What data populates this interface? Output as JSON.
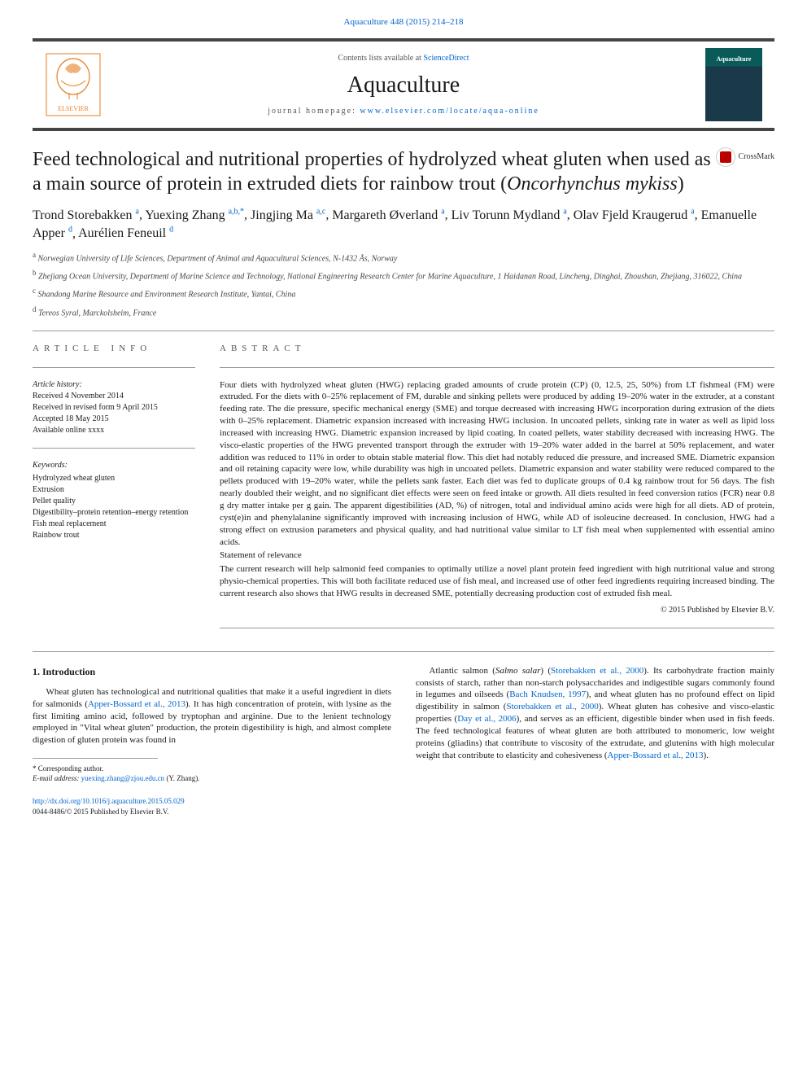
{
  "topLink": "Aquaculture 448 (2015) 214–218",
  "header": {
    "contentsPrefix": "Contents lists available at ",
    "contentsLink": "ScienceDirect",
    "journalName": "Aquaculture",
    "homepagePrefix": "journal homepage: ",
    "homepageUrl": "www.elsevier.com/locate/aqua-online",
    "coverLabel": "Aquaculture"
  },
  "title": {
    "main": "Feed technological and nutritional properties of hydrolyzed wheat gluten when used as a main source of protein in extruded diets for rainbow trout (",
    "italic": "Oncorhynchus mykiss",
    "tail": ")"
  },
  "crossmark": "CrossMark",
  "authors": [
    {
      "name": "Trond Storebakken",
      "affs": "a"
    },
    {
      "name": "Yuexing Zhang",
      "affs": "a,b,*"
    },
    {
      "name": "Jingjing Ma",
      "affs": "a,c"
    },
    {
      "name": "Margareth Øverland",
      "affs": "a"
    },
    {
      "name": "Liv Torunn Mydland",
      "affs": "a"
    },
    {
      "name": "Olav Fjeld Kraugerud",
      "affs": "a"
    },
    {
      "name": "Emanuelle Apper",
      "affs": "d"
    },
    {
      "name": "Aurélien Feneuil",
      "affs": "d"
    }
  ],
  "affiliations": [
    {
      "sup": "a",
      "text": "Norwegian University of Life Sciences, Department of Animal and Aquacultural Sciences, N-1432 Ås, Norway"
    },
    {
      "sup": "b",
      "text": "Zhejiang Ocean University, Department of Marine Science and Technology, National Engineering Research Center for Marine Aquaculture, 1 Haidanan Road, Lincheng, Dinghai, Zhoushan, Zhejiang, 316022, China"
    },
    {
      "sup": "c",
      "text": "Shandong Marine Resource and Environment Research Institute, Yantai, China"
    },
    {
      "sup": "d",
      "text": "Tereos Syral, Marckolsheim, France"
    }
  ],
  "articleInfo": {
    "header": "ARTICLE INFO",
    "historyLabel": "Article history:",
    "history": [
      "Received 4 November 2014",
      "Received in revised form 9 April 2015",
      "Accepted 18 May 2015",
      "Available online xxxx"
    ],
    "keywordsLabel": "Keywords:",
    "keywords": [
      "Hydrolyzed wheat gluten",
      "Extrusion",
      "Pellet quality",
      "Digestibility–protein retention–energy retention",
      "Fish meal replacement",
      "Rainbow trout"
    ]
  },
  "abstract": {
    "header": "ABSTRACT",
    "p1": "Four diets with hydrolyzed wheat gluten (HWG) replacing graded amounts of crude protein (CP) (0, 12.5, 25, 50%) from LT fishmeal (FM) were extruded. For the diets with 0–25% replacement of FM, durable and sinking pellets were produced by adding 19–20% water in the extruder, at a constant feeding rate. The die pressure, specific mechanical energy (SME) and torque decreased with increasing HWG incorporation during extrusion of the diets with 0–25% replacement. Diametric expansion increased with increasing HWG inclusion. In uncoated pellets, sinking rate in water as well as lipid loss increased with increasing HWG. Diametric expansion increased by lipid coating. In coated pellets, water stability decreased with increasing HWG. The visco-elastic properties of the HWG prevented transport through the extruder with 19–20% water added in the barrel at 50% replacement, and water addition was reduced to 11% in order to obtain stable material flow. This diet had notably reduced die pressure, and increased SME. Diametric expansion and oil retaining capacity were low, while durability was high in uncoated pellets. Diametric expansion and water stability were reduced compared to the pellets produced with 19–20% water, while the pellets sank faster. Each diet was fed to duplicate groups of 0.4 kg rainbow trout for 56 days. The fish nearly doubled their weight, and no significant diet effects were seen on feed intake or growth. All diets resulted in feed conversion ratios (FCR) near 0.8 g dry matter intake per g gain. The apparent digestibilities (AD, %) of nitrogen, total and individual amino acids were high for all diets. AD of protein, cyst(e)in and phenylalanine significantly improved with increasing inclusion of HWG, while AD of isoleucine decreased. In conclusion, HWG had a strong effect on extrusion parameters and physical quality, and had nutritional value similar to LT fish meal when supplemented with essential amino acids.",
    "relevanceLabel": "Statement of relevance",
    "p2": "The current research will help salmonid feed companies to optimally utilize a novel plant protein feed ingredient with high nutritional value and strong physio-chemical properties. This will both facilitate reduced use of fish meal, and increased use of other feed ingredients requiring increased binding. The current research also shows that HWG results in decreased SME, potentially decreasing production cost of extruded fish meal.",
    "copyright": "© 2015 Published by Elsevier B.V."
  },
  "intro": {
    "heading": "1. Introduction",
    "leftPara": {
      "t1": "Wheat gluten has technological and nutritional qualities that make it a useful ingredient in diets for salmonids (",
      "ref1": "Apper-Bossard et al., 2013",
      "t2": "). It has high concentration of protein, with lysine as the first limiting amino acid, followed by tryptophan and arginine. Due to the lenient technology employed in \"Vital wheat gluten\" production, the protein digestibility is high, and almost complete digestion of gluten protein was found in"
    },
    "rightPara": {
      "t1": "Atlantic salmon (",
      "it1": "Salmo salar",
      "t2": ") (",
      "ref1": "Storebakken et al., 2000",
      "t3": "). Its carbohydrate fraction mainly consists of starch, rather than non-starch polysaccharides and indigestible sugars commonly found in legumes and oilseeds (",
      "ref2": "Bach Knudsen, 1997",
      "t4": "), and wheat gluten has no profound effect on lipid digestibility in salmon (",
      "ref3": "Storebakken et al., 2000",
      "t5": "). Wheat gluten has cohesive and visco-elastic properties (",
      "ref4": "Day et al., 2006",
      "t6": "), and serves as an efficient, digestible binder when used in fish feeds. The feed technological features of wheat gluten are both attributed to monomeric, low weight proteins (gliadins) that contribute to viscosity of the extrudate, and glutenins with high molecular weight that contribute to elasticity and cohesiveness (",
      "ref5": "Apper-Bossard et al., 2013",
      "t7": ")."
    }
  },
  "footnote": {
    "corr": "* Corresponding author.",
    "emailLabel": "E-mail address: ",
    "email": "yuexing.zhang@zjou.edu.cn",
    "emailTail": " (Y. Zhang)."
  },
  "footer": {
    "doi": "http://dx.doi.org/10.1016/j.aquaculture.2015.05.029",
    "issn": "0044-8486/© 2015 Published by Elsevier B.V."
  },
  "colors": {
    "link": "#0066cc",
    "barBorder": "#444444",
    "text": "#1a1a1a",
    "muted": "#555555",
    "crossmarkRed": "#b00000"
  }
}
